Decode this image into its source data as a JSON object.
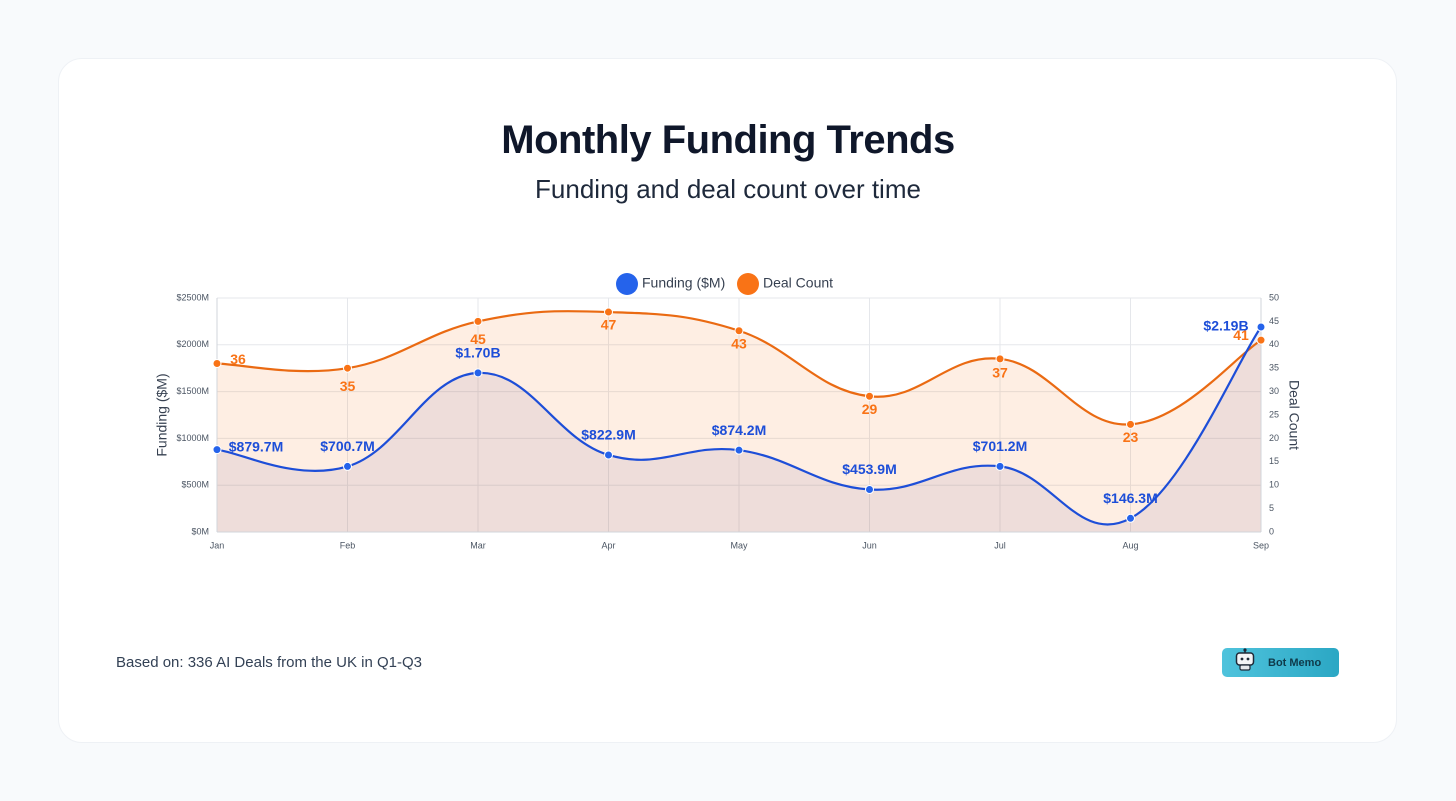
{
  "header": {
    "title": "Monthly Funding Trends",
    "subtitle": "Funding and deal count over time"
  },
  "footer": {
    "note": "Based on: 336 AI Deals from the UK in Q1-Q3",
    "brand": "Bot Memo"
  },
  "colors": {
    "funding": "#1d4ed8",
    "funding_marker": "#2563eb",
    "deals": "#f97316",
    "deals_line": "#ea6a12"
  },
  "chart_data": {
    "type": "line",
    "categories": [
      "Jan",
      "Feb",
      "Mar",
      "Apr",
      "May",
      "Jun",
      "Jul",
      "Aug",
      "Sep"
    ],
    "series": [
      {
        "name": "Funding ($M)",
        "axis": "left",
        "values": [
          879.7,
          700.7,
          1700,
          822.9,
          874.2,
          453.9,
          701.2,
          146.3,
          2190
        ],
        "labels": [
          "$879.7M",
          "$700.7M",
          "$1.70B",
          "$822.9M",
          "$874.2M",
          "$453.9M",
          "$701.2M",
          "$146.3M",
          "$2.19B"
        ]
      },
      {
        "name": "Deal Count",
        "axis": "right",
        "values": [
          36,
          35,
          45,
          47,
          43,
          29,
          37,
          23,
          41
        ],
        "labels": [
          "36",
          "35",
          "45",
          "47",
          "43",
          "29",
          "37",
          "23",
          "41"
        ]
      }
    ],
    "y_left": {
      "label": "Funding ($M)",
      "range": [
        0,
        2500
      ],
      "ticks": [
        "$0M",
        "$500M",
        "$1000M",
        "$1500M",
        "$2000M",
        "$2500M"
      ]
    },
    "y_right": {
      "label": "Deal Count",
      "range": [
        0,
        50
      ],
      "ticks": [
        "0",
        "5",
        "10",
        "15",
        "20",
        "25",
        "30",
        "35",
        "40",
        "45",
        "50"
      ]
    },
    "legend": {
      "position": "top-center",
      "items": [
        "Funding ($M)",
        "Deal Count"
      ]
    },
    "grid": true
  }
}
